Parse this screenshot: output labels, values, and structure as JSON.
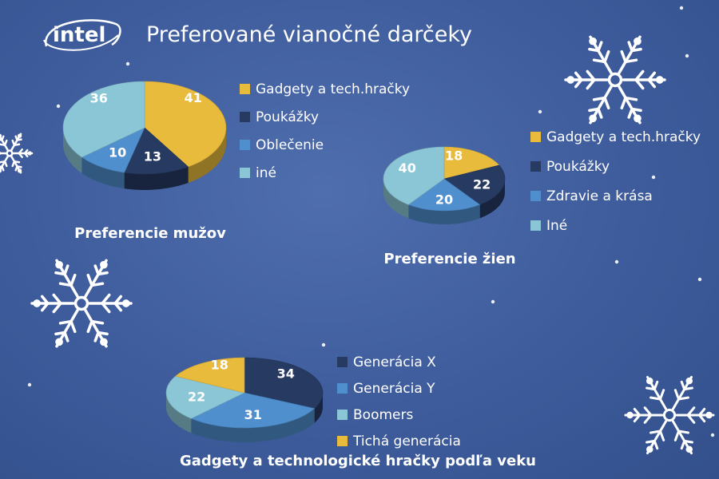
{
  "header": {
    "logo_text": "intel",
    "title": "Preferované vianočné darčeky"
  },
  "chart_data": [
    {
      "type": "pie",
      "title": "Preferencie mužov",
      "legend_position": "right",
      "slices": [
        {
          "label": "Gadgety a tech.hračky",
          "value": 41,
          "color": "#e9bb3d"
        },
        {
          "label": "Poukážky",
          "value": 13,
          "color": "#263a62"
        },
        {
          "label": "Oblečenie",
          "value": 10,
          "color": "#4f8fcd"
        },
        {
          "label": "iné",
          "value": 36,
          "color": "#8bc6d6"
        }
      ]
    },
    {
      "type": "pie",
      "title": "Preferencie žien",
      "legend_position": "right",
      "slices": [
        {
          "label": "Gadgety a tech.hračky",
          "value": 18,
          "color": "#e9bb3d"
        },
        {
          "label": "Poukážky",
          "value": 22,
          "color": "#263a62"
        },
        {
          "label": "Zdravie a krása",
          "value": 20,
          "color": "#4f8fcd"
        },
        {
          "label": "Iné",
          "value": 40,
          "color": "#8bc6d6"
        }
      ]
    },
    {
      "type": "pie",
      "title": "Gadgety a technologické hračky podľa veku",
      "legend_position": "right",
      "slices": [
        {
          "label": "Generácia X",
          "value": 34,
          "color": "#263a62"
        },
        {
          "label": "Generácia Y",
          "value": 31,
          "color": "#4f8fcd"
        },
        {
          "label": "Boomers",
          "value": 22,
          "color": "#8bc6d6"
        },
        {
          "label": "Tichá generácia",
          "value": 18,
          "color": "#e9bb3d"
        }
      ]
    }
  ]
}
